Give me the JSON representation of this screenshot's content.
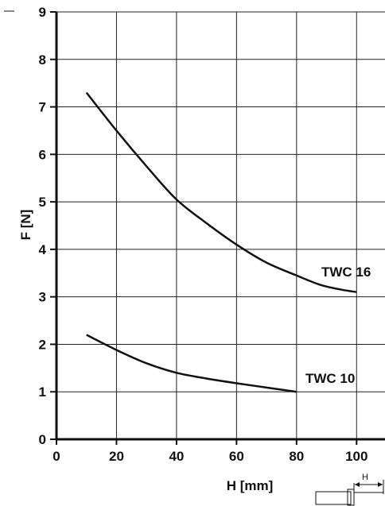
{
  "chart_data": {
    "type": "line",
    "title": "",
    "xlabel": "H [mm]",
    "ylabel": "F [N]",
    "xlim": [
      0,
      110
    ],
    "ylim": [
      0,
      9
    ],
    "x_ticks": [
      0,
      20,
      40,
      60,
      80,
      100
    ],
    "y_ticks": [
      0,
      1,
      2,
      3,
      4,
      5,
      6,
      7,
      8,
      9
    ],
    "grid": true,
    "series": [
      {
        "name": "TWC 16",
        "x": [
          10,
          20,
          30,
          40,
          50,
          60,
          70,
          80,
          88,
          95,
          100
        ],
        "y": [
          7.3,
          6.5,
          5.75,
          5.05,
          4.55,
          4.1,
          3.72,
          3.45,
          3.25,
          3.15,
          3.1
        ]
      },
      {
        "name": "TWC 10",
        "x": [
          10,
          20,
          30,
          40,
          50,
          60,
          70,
          80
        ],
        "y": [
          2.2,
          1.88,
          1.6,
          1.4,
          1.28,
          1.18,
          1.09,
          1.0
        ]
      }
    ]
  },
  "diagram": {
    "h_label": "H"
  }
}
